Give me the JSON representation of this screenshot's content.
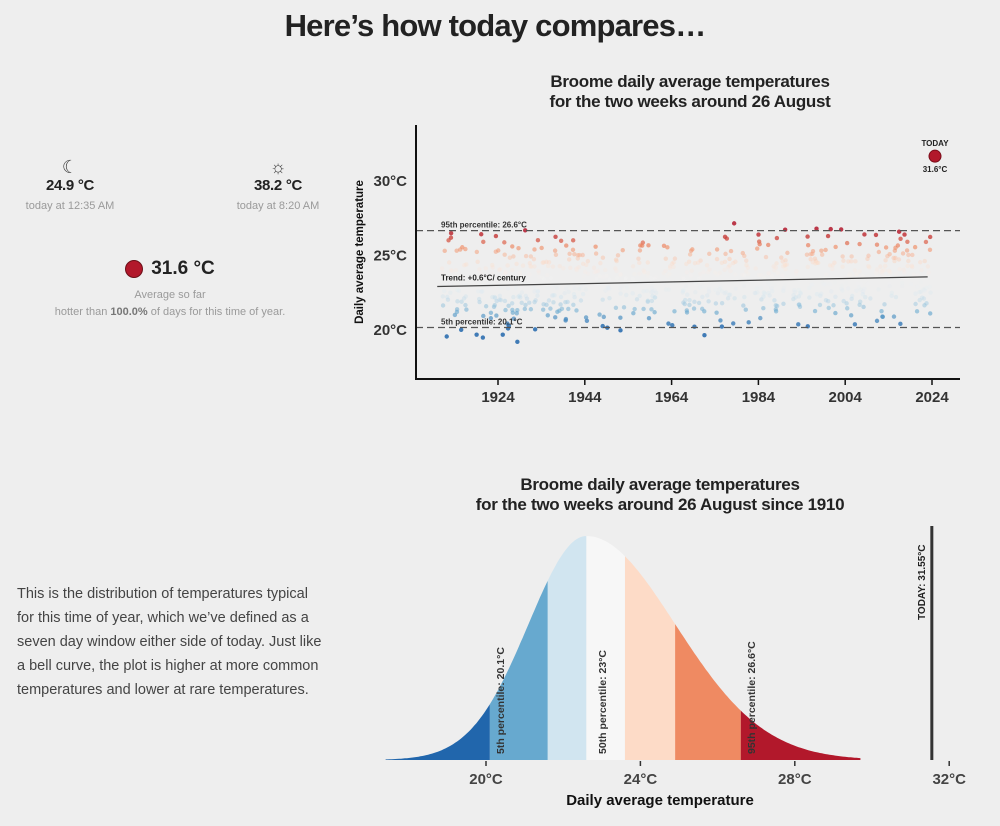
{
  "page_title": "Here’s how today compares…",
  "stats": {
    "min": {
      "icon": "moon-icon",
      "value": "24.9 °C",
      "time": "today at 12:35 AM"
    },
    "max": {
      "icon": "sun-icon",
      "value": "38.2 °C",
      "time": "today at 8:20 AM"
    },
    "average": {
      "value": "31.6 °C",
      "label": "Average so far",
      "hotter_prefix": "hotter than ",
      "hotter_pct": "100.0%",
      "hotter_suffix": " of days for this time of year."
    }
  },
  "description": "This is the distribution of temperatures typical for this time of year, which we’ve defined as a seven day window either side of today. Just like a bell curve, the plot is higher at more common temperatures and lower at rare temperatures.",
  "chart_data": [
    {
      "type": "scatter",
      "title_line1": "Broome daily average temperatures",
      "title_line2": "for the two weeks around 26 August",
      "ylabel": "Daily average temperature",
      "xlim": [
        1905,
        2030
      ],
      "ylim": [
        17,
        33.5
      ],
      "x_ticks": [
        "1924",
        "1944",
        "1964",
        "1984",
        "2004",
        "2024"
      ],
      "x_tick_values": [
        1924,
        1944,
        1964,
        1984,
        2004,
        2024
      ],
      "y_ticks": [
        "20°C",
        "25°C",
        "30°C"
      ],
      "y_tick_values": [
        20,
        25,
        30
      ],
      "year_range": [
        1910,
        2023
      ],
      "p95": {
        "value": 26.6,
        "label": "95th percentile: 26.6°C"
      },
      "p5": {
        "value": 20.1,
        "label": "5th percentile: 20.1°C"
      },
      "trend": {
        "label": "Trend: +0.6°C/ century",
        "start": [
          1910,
          22.85
        ],
        "end": [
          2023,
          23.5
        ]
      },
      "today": {
        "year": 2024,
        "value": 31.6,
        "label_top": "TODAY",
        "label_bottom": "31.6°C"
      },
      "grid": false
    },
    {
      "type": "area",
      "title_line1": "Broome daily average temperatures",
      "title_line2": "for the two weeks around 26 August since 1910",
      "xlabel": "Daily average temperature",
      "xlim": [
        17.4,
        32.3
      ],
      "x_ticks": [
        "20°C",
        "24°C",
        "28°C",
        "32°C"
      ],
      "x_tick_values": [
        20,
        24,
        28,
        32
      ],
      "mode": 22.6,
      "band_edges": [
        17.4,
        20.1,
        21.6,
        22.6,
        23.6,
        24.9,
        26.6,
        29.7
      ],
      "band_colors": [
        "#2166ac",
        "#67a9cf",
        "#d1e5f0",
        "#f7f7f7",
        "#fddbc7",
        "#ef8a62",
        "#b2182b"
      ],
      "percentile_labels": [
        {
          "value": 20.1,
          "label": "5th percentile:  20.1°C"
        },
        {
          "value": 23,
          "label": "50th percentile: 23°C"
        },
        {
          "value": 26.6,
          "label": "95th percentile:  26.6°C"
        }
      ],
      "today": {
        "value": 31.55,
        "label": "TODAY:  31.55°C"
      },
      "grid": false
    }
  ]
}
